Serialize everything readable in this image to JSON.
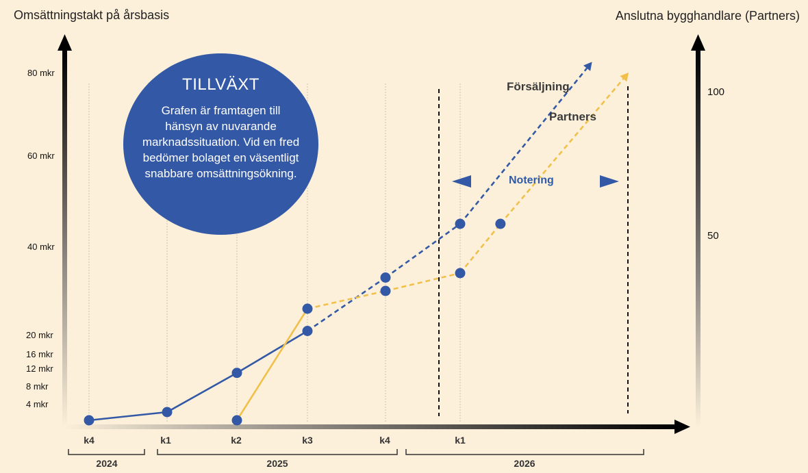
{
  "left_axis_title": "Omsättningstakt på årsbasis",
  "right_axis_title": "Anslutna bygghandlare (Partners)",
  "bubble": {
    "title": "TILLVÄXT",
    "text": "Grafen är framtagen till hänsyn av nuvarande marknadssituation. Vid en fred bedömer bolaget en väsentligt snabbare omsättningsökning."
  },
  "colors": {
    "blue": "#3358a5",
    "yellow": "#f0c04a",
    "background": "#fcf0da"
  },
  "chart_data": {
    "type": "line",
    "x": [
      "k4",
      "k1",
      "k2",
      "k3",
      "k4",
      "k1"
    ],
    "year_groups": [
      {
        "label": "2024",
        "quarters": [
          "k4"
        ]
      },
      {
        "label": "2025",
        "quarters": [
          "k1",
          "k2",
          "k3",
          "k4"
        ]
      },
      {
        "label": "2026",
        "quarters": [
          "k1"
        ]
      }
    ],
    "left_axis": {
      "ticks": [
        4,
        8,
        12,
        16,
        20,
        40,
        60,
        80
      ],
      "tick_labels": [
        "4 mkr",
        "8 mkr",
        "12 mkr",
        "16 mkr",
        "20 mkr",
        "40 mkr",
        "60 mkr",
        "80 mkr"
      ]
    },
    "right_axis": {
      "ticks": [
        50,
        100
      ],
      "tick_labels": [
        "50",
        "100"
      ]
    },
    "series": [
      {
        "name": "Försäljning",
        "color": "#3358a5",
        "points": [
          {
            "x": 0,
            "y": 0,
            "style": "solid"
          },
          {
            "x": 1,
            "y": 2,
            "style": "solid"
          },
          {
            "x": 2,
            "y": 11,
            "style": "solid"
          },
          {
            "x": 3,
            "y": 21,
            "style": "solid"
          },
          {
            "x": 4,
            "y": 33,
            "style": "dashed"
          },
          {
            "x": 5,
            "y": 45,
            "style": "dashed"
          }
        ],
        "projection_end": {
          "x": 6.8,
          "y": 82
        }
      },
      {
        "name": "Partners",
        "color": "#f0c04a",
        "points": [
          {
            "x": 2,
            "y": 0,
            "style": "solid"
          },
          {
            "x": 3,
            "y": 26,
            "style": "solid"
          },
          {
            "x": 4,
            "y": 30,
            "style": "dashed"
          },
          {
            "x": 5,
            "y": 34,
            "style": "dashed"
          },
          {
            "x": 5.55,
            "y": 45,
            "style": "dashed"
          }
        ],
        "projection_end": {
          "x": 7.3,
          "y": 80
        }
      }
    ],
    "annotation": {
      "label": "Notering",
      "from_x": 4.7,
      "to_x": 7.3
    }
  }
}
